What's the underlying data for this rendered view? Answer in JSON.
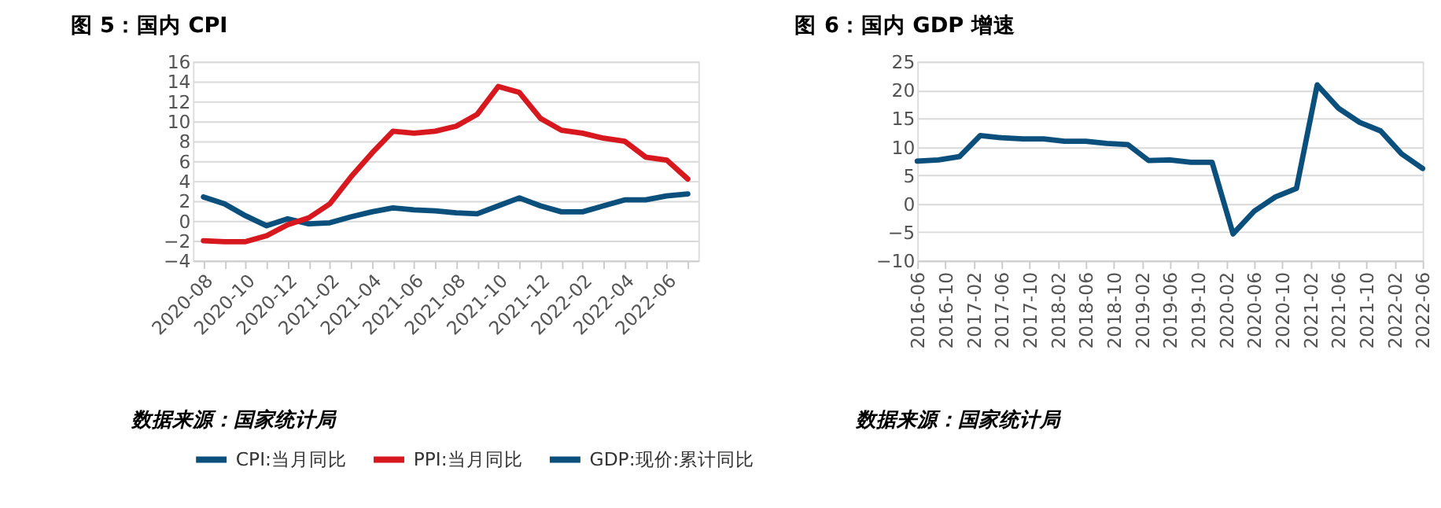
{
  "chart_data": [
    {
      "type": "line",
      "title": "图 5：国内 CPI",
      "categories": [
        "2020-08",
        null,
        "2020-10",
        null,
        "2020-12",
        null,
        "2021-02",
        null,
        "2021-04",
        null,
        "2021-06",
        null,
        "2021-08",
        null,
        "2021-10",
        null,
        "2021-12",
        null,
        "2022-02",
        null,
        "2022-04",
        null,
        "2022-06",
        null
      ],
      "series": [
        {
          "name": "CPI:当月同比",
          "color": "#0b4f7c",
          "values": [
            2.4,
            1.7,
            0.5,
            -0.5,
            0.2,
            -0.3,
            -0.2,
            0.4,
            0.9,
            1.3,
            1.1,
            1.0,
            0.8,
            0.7,
            1.5,
            2.3,
            1.5,
            0.9,
            0.9,
            1.5,
            2.1,
            2.1,
            2.5,
            2.7
          ]
        },
        {
          "name": "PPI:当月同比",
          "color": "#d7191f",
          "values": [
            -2.0,
            -2.1,
            -2.1,
            -1.5,
            -0.4,
            0.3,
            1.7,
            4.4,
            6.8,
            9.0,
            8.8,
            9.0,
            9.5,
            10.7,
            13.5,
            12.9,
            10.3,
            9.1,
            8.8,
            8.3,
            8.0,
            6.4,
            6.1,
            4.2
          ]
        }
      ],
      "ylim": [
        -4,
        16
      ],
      "yticks": [
        -4,
        -2,
        0,
        2,
        4,
        6,
        8,
        10,
        12,
        14,
        16
      ],
      "grid": "y",
      "legend": "bottom",
      "line_style": "solid",
      "marker": "none",
      "annotations": [
        "数据来源：国家统计局"
      ]
    },
    {
      "type": "line",
      "title": "图 6：国内 GDP 增速",
      "x": [
        "2016-06",
        "2016-09",
        "2016-12",
        "2017-03",
        "2017-06",
        "2017-09",
        "2017-12",
        "2018-03",
        "2018-06",
        "2018-09",
        "2018-12",
        "2019-03",
        "2019-06",
        "2019-09",
        "2019-12",
        "2020-03",
        "2020-06",
        "2020-09",
        "2020-12",
        "2021-03",
        "2021-06",
        "2021-09",
        "2021-12",
        "2022-03",
        "2022-06"
      ],
      "series": [
        {
          "name": "GDP:现价:累计同比",
          "color": "#0b4f7c",
          "values": [
            7.5,
            7.7,
            8.3,
            12.0,
            11.6,
            11.4,
            11.4,
            11.0,
            11.0,
            10.6,
            10.4,
            7.6,
            7.7,
            7.3,
            7.3,
            -5.3,
            -1.3,
            1.2,
            2.7,
            20.9,
            16.8,
            14.3,
            12.8,
            8.8,
            6.2
          ]
        }
      ],
      "xlim": [
        "2016-06",
        "2022-06"
      ],
      "xticks": [
        "2016-06",
        "2016-10",
        "2017-02",
        "2017-06",
        "2017-10",
        "2018-02",
        "2018-06",
        "2018-10",
        "2019-02",
        "2019-06",
        "2019-10",
        "2020-02",
        "2020-06",
        "2020-10",
        "2021-02",
        "2021-06",
        "2021-10",
        "2022-02",
        "2022-06"
      ],
      "ylim": [
        -10,
        25
      ],
      "yticks": [
        -10,
        -5,
        0,
        5,
        10,
        15,
        20,
        25
      ],
      "grid": "y",
      "legend": "bottom",
      "line_style": "solid",
      "marker": "none",
      "annotations": [
        "数据来源：国家统计局"
      ]
    }
  ]
}
